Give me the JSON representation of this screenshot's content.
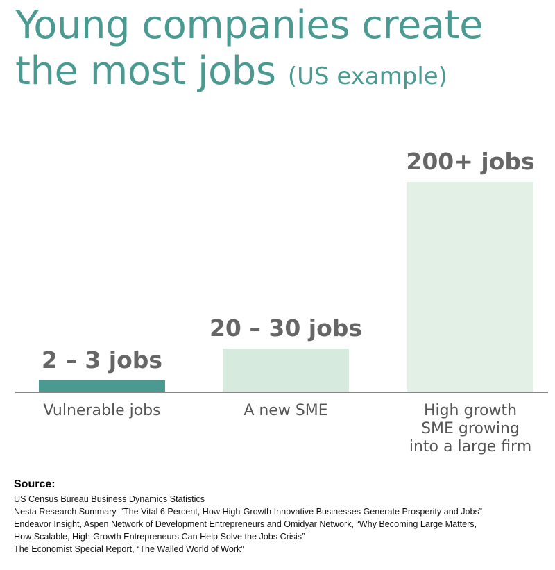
{
  "title": {
    "line1": "Young companies create",
    "line2": "the most jobs",
    "line2_suffix": "(US example)"
  },
  "chart_data": {
    "type": "bar",
    "categories": [
      [
        "Vulnerable jobs"
      ],
      [
        "A new SME"
      ],
      [
        "High growth",
        "SME growing",
        "into a large firm"
      ]
    ],
    "data_labels": [
      "2 – 3 jobs",
      "20 – 30 jobs",
      "200+ jobs"
    ],
    "values": [
      2.5,
      25,
      200
    ],
    "value_units": "jobs",
    "bar_colors": [
      "#4a9a92",
      "#d6eade",
      "#e3f0e6"
    ],
    "grid": false,
    "legend": "none"
  },
  "colors": {
    "title": "#4a9a92",
    "data_label": "#666666",
    "category_label": "#555555",
    "axis": "#888888"
  },
  "source": {
    "heading": "Source:",
    "lines": [
      "US Census Bureau Business Dynamics Statistics",
      "Nesta Research Summary, “The Vital 6 Percent, How High-Growth Innovative Businesses Generate Prosperity and Jobs”",
      "Endeavor Insight, Aspen Network of Development Entrepreneurs and Omidyar Network, “Why Becoming Large Matters,",
      "How Scalable, High-Growth Entrepreneurs Can Help Solve the Jobs Crisis”",
      "The Economist Special Report, “The Walled World of Work”"
    ]
  }
}
